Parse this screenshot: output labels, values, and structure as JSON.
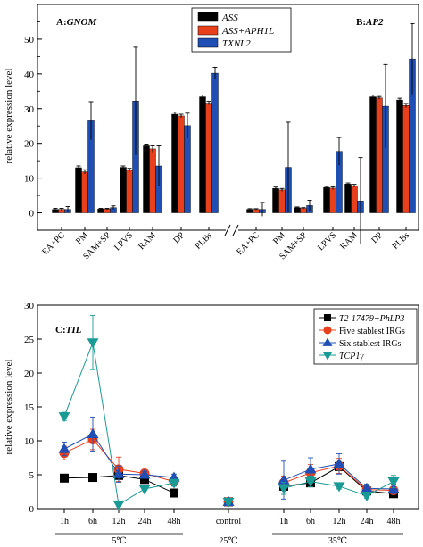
{
  "colors": {
    "ASS": "#000000",
    "ASS_APH1L": "#e8401c",
    "TXNL2": "#1f4fb4",
    "errorbar": "#000000",
    "c_ref": "#000000",
    "c_five": "#e8401c",
    "c_six": "#1f4fb4",
    "c_tcp": "#1a9a94"
  },
  "chart_data": [
    {
      "type": "bar",
      "panels": [
        {
          "label": "A:",
          "gene": "GNOM",
          "categories": [
            "EA+PC",
            "PM",
            "SAM+SP",
            "LPVS",
            "RAM",
            "DP",
            "PLBs"
          ],
          "series": [
            {
              "name": "ASS",
              "values": [
                1.0,
                13.0,
                1.1,
                13.1,
                19.3,
                28.4,
                33.4
              ],
              "errors": [
                0.3,
                0.5,
                0.2,
                0.4,
                0.5,
                0.6,
                0.5
              ]
            },
            {
              "name": "ASS+APH1L",
              "values": [
                1.0,
                11.8,
                1.1,
                12.3,
                18.4,
                27.9,
                31.6
              ],
              "errors": [
                0.3,
                0.6,
                0.2,
                0.5,
                0.9,
                0.5,
                0.5
              ]
            },
            {
              "name": "TXNL2",
              "values": [
                1.0,
                26.5,
                1.5,
                32.2,
                13.5,
                25.1,
                40.2
              ],
              "errors": [
                0.8,
                5.5,
                0.5,
                15.5,
                5.8,
                3.6,
                1.7
              ]
            }
          ]
        },
        {
          "label": "B:",
          "gene": "AP2",
          "categories": [
            "EA+PC",
            "PM",
            "SAM+SP",
            "LPVS",
            "RAM",
            "DP",
            "PLBs"
          ],
          "series": [
            {
              "name": "ASS",
              "values": [
                1.0,
                7.0,
                1.5,
                7.3,
                8.3,
                33.4,
                32.5
              ],
              "errors": [
                0.2,
                0.4,
                0.2,
                0.3,
                0.3,
                0.5,
                0.5
              ]
            },
            {
              "name": "ASS+APH1L",
              "values": [
                1.0,
                6.6,
                1.3,
                7.1,
                7.8,
                33.1,
                30.9
              ],
              "errors": [
                0.2,
                0.4,
                0.2,
                0.4,
                0.4,
                0.4,
                0.6
              ]
            },
            {
              "name": "TXNL2",
              "values": [
                1.0,
                13.1,
                2.1,
                17.7,
                3.4,
                30.7,
                44.3
              ],
              "errors": [
                2.0,
                13.0,
                1.5,
                4.0,
                12.5,
                12.0,
                10.2
              ]
            }
          ]
        }
      ],
      "ylabel": "relative expression level",
      "ylim": [
        -5,
        60
      ],
      "yticks": [
        0,
        10,
        20,
        30,
        40,
        50
      ],
      "legend": {
        "placement": "top-center",
        "entries": [
          "ASS",
          "ASS+APH1L",
          "TXNL2"
        ]
      }
    },
    {
      "type": "line",
      "label": "C:",
      "gene": "TIL",
      "ylabel": "relative expression level",
      "ylim": [
        0,
        30
      ],
      "yticks": [
        0,
        5,
        10,
        15,
        20,
        25,
        30
      ],
      "groups": [
        {
          "name": "5℃",
          "x": [
            "1h",
            "6h",
            "12h",
            "24h",
            "48h"
          ]
        },
        {
          "name": "25℃",
          "x": [
            "control"
          ]
        },
        {
          "name": "35℃",
          "x": [
            "1h",
            "6h",
            "12h",
            "24h",
            "48h"
          ]
        }
      ],
      "legend": {
        "placement": "top-right",
        "entries": [
          "T2-17479+PhLP3",
          "Five stablest IRGs",
          "Six stablest IRGs",
          "TCP1γ"
        ]
      },
      "series": [
        {
          "name": "T2-17479+PhLP3",
          "marker": "square",
          "values": [
            [
              4.5,
              4.6,
              4.9,
              4.3,
              2.3
            ],
            [
              1.0
            ],
            [
              3.3,
              3.8,
              6.2,
              2.6,
              2.2
            ]
          ],
          "errors": [
            [
              0.2,
              0.2,
              0.2,
              0.2,
              0.1
            ],
            [
              0.1
            ],
            [
              0.4,
              0.3,
              0.4,
              0.3,
              0.2
            ]
          ]
        },
        {
          "name": "Five stablest IRGs",
          "marker": "circle",
          "values": [
            [
              8.2,
              10.2,
              5.8,
              5.2,
              4.0
            ],
            [
              1.0
            ],
            [
              3.8,
              5.3,
              6.3,
              2.8,
              2.7
            ]
          ],
          "errors": [
            [
              1.0,
              1.5,
              1.8,
              0.5,
              0.6
            ],
            [
              0.2
            ],
            [
              1.0,
              1.2,
              1.1,
              0.6,
              0.6
            ]
          ]
        },
        {
          "name": "Six stablest IRGs",
          "marker": "triangle-up",
          "values": [
            [
              8.8,
              11.0,
              5.1,
              5.0,
              4.6
            ],
            [
              1.0
            ],
            [
              4.2,
              5.8,
              6.6,
              3.0,
              2.9
            ]
          ],
          "errors": [
            [
              1.0,
              2.5,
              1.2,
              0.5,
              0.5
            ],
            [
              0.2
            ],
            [
              2.8,
              1.7,
              1.5,
              0.6,
              0.7
            ]
          ]
        },
        {
          "name": "TCP1γ",
          "marker": "triangle-down",
          "values": [
            [
              13.6,
              24.5,
              0.6,
              2.9,
              3.8
            ],
            [
              1.0
            ],
            [
              3.0,
              4.0,
              3.3,
              1.9,
              4.0
            ]
          ],
          "errors": [
            [
              0.6,
              4.0,
              0.3,
              0.2,
              0.5
            ],
            [
              0.3
            ],
            [
              0.9,
              0.8,
              0.4,
              0.4,
              0.9
            ]
          ]
        }
      ]
    }
  ]
}
